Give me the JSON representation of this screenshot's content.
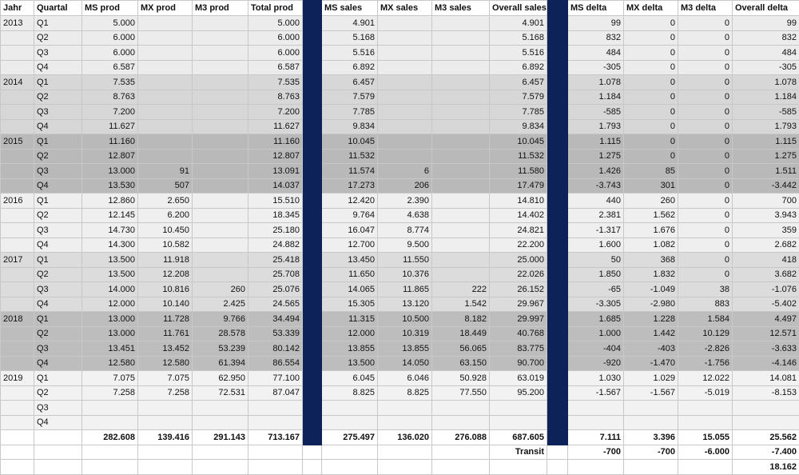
{
  "headers": [
    "Jahr",
    "Quartal",
    "MS prod",
    "MX prod",
    "M3 prod",
    "Total prod",
    "",
    "MS sales",
    "MX sales",
    "M3 sales",
    "Overall sales",
    "",
    "MS delta",
    "MX delta",
    "M3  delta",
    "Overall delta"
  ],
  "rows": [
    {
      "g": "g0",
      "year": "2013",
      "q": "Q1",
      "c": [
        "5.000",
        "",
        "",
        "5.000",
        "4.901",
        "",
        "",
        "4.901",
        "99",
        "0",
        "0",
        "99"
      ]
    },
    {
      "g": "g0",
      "year": "",
      "q": "Q2",
      "c": [
        "6.000",
        "",
        "",
        "6.000",
        "5.168",
        "",
        "",
        "5.168",
        "832",
        "0",
        "0",
        "832"
      ]
    },
    {
      "g": "g0",
      "year": "",
      "q": "Q3",
      "c": [
        "6.000",
        "",
        "",
        "6.000",
        "5.516",
        "",
        "",
        "5.516",
        "484",
        "0",
        "0",
        "484"
      ]
    },
    {
      "g": "g0",
      "year": "",
      "q": "Q4",
      "c": [
        "6.587",
        "",
        "",
        "6.587",
        "6.892",
        "",
        "",
        "6.892",
        "-305",
        "0",
        "0",
        "-305"
      ]
    },
    {
      "g": "g1",
      "year": "2014",
      "q": "Q1",
      "c": [
        "7.535",
        "",
        "",
        "7.535",
        "6.457",
        "",
        "",
        "6.457",
        "1.078",
        "0",
        "0",
        "1.078"
      ]
    },
    {
      "g": "g1",
      "year": "",
      "q": "Q2",
      "c": [
        "8.763",
        "",
        "",
        "8.763",
        "7.579",
        "",
        "",
        "7.579",
        "1.184",
        "0",
        "0",
        "1.184"
      ]
    },
    {
      "g": "g1",
      "year": "",
      "q": "Q3",
      "c": [
        "7.200",
        "",
        "",
        "7.200",
        "7.785",
        "",
        "",
        "7.785",
        "-585",
        "0",
        "0",
        "-585"
      ]
    },
    {
      "g": "g1",
      "year": "",
      "q": "Q4",
      "c": [
        "11.627",
        "",
        "",
        "11.627",
        "9.834",
        "",
        "",
        "9.834",
        "1.793",
        "0",
        "0",
        "1.793"
      ]
    },
    {
      "g": "g2",
      "year": "2015",
      "q": "Q1",
      "c": [
        "11.160",
        "",
        "",
        "11.160",
        "10.045",
        "",
        "",
        "10.045",
        "1.115",
        "0",
        "0",
        "1.115"
      ]
    },
    {
      "g": "g2",
      "year": "",
      "q": "Q2",
      "c": [
        "12.807",
        "",
        "",
        "12.807",
        "11.532",
        "",
        "",
        "11.532",
        "1.275",
        "0",
        "0",
        "1.275"
      ]
    },
    {
      "g": "g2",
      "year": "",
      "q": "Q3",
      "c": [
        "13.000",
        "91",
        "",
        "13.091",
        "11.574",
        "6",
        "",
        "11.580",
        "1.426",
        "85",
        "0",
        "1.511"
      ]
    },
    {
      "g": "g2",
      "year": "",
      "q": "Q4",
      "c": [
        "13.530",
        "507",
        "",
        "14.037",
        "17.273",
        "206",
        "",
        "17.479",
        "-3.743",
        "301",
        "0",
        "-3.442"
      ]
    },
    {
      "g": "g3",
      "year": "2016",
      "q": "Q1",
      "c": [
        "12.860",
        "2.650",
        "",
        "15.510",
        "12.420",
        "2.390",
        "",
        "14.810",
        "440",
        "260",
        "0",
        "700"
      ]
    },
    {
      "g": "g3",
      "year": "",
      "q": "Q2",
      "c": [
        "12.145",
        "6.200",
        "",
        "18.345",
        "9.764",
        "4.638",
        "",
        "14.402",
        "2.381",
        "1.562",
        "0",
        "3.943"
      ]
    },
    {
      "g": "g3",
      "year": "",
      "q": "Q3",
      "c": [
        "14.730",
        "10.450",
        "",
        "25.180",
        "16.047",
        "8.774",
        "",
        "24.821",
        "-1.317",
        "1.676",
        "0",
        "359"
      ]
    },
    {
      "g": "g3",
      "year": "",
      "q": "Q4",
      "c": [
        "14.300",
        "10.582",
        "",
        "24.882",
        "12.700",
        "9.500",
        "",
        "22.200",
        "1.600",
        "1.082",
        "0",
        "2.682"
      ]
    },
    {
      "g": "g4",
      "year": "2017",
      "q": "Q1",
      "c": [
        "13.500",
        "11.918",
        "",
        "25.418",
        "13.450",
        "11.550",
        "",
        "25.000",
        "50",
        "368",
        "0",
        "418"
      ]
    },
    {
      "g": "g4",
      "year": "",
      "q": "Q2",
      "c": [
        "13.500",
        "12.208",
        "",
        "25.708",
        "11.650",
        "10.376",
        "",
        "22.026",
        "1.850",
        "1.832",
        "0",
        "3.682"
      ]
    },
    {
      "g": "g4",
      "year": "",
      "q": "Q3",
      "c": [
        "14.000",
        "10.816",
        "260",
        "25.076",
        "14.065",
        "11.865",
        "222",
        "26.152",
        "-65",
        "-1.049",
        "38",
        "-1.076"
      ]
    },
    {
      "g": "g4",
      "year": "",
      "q": "Q4",
      "c": [
        "12.000",
        "10.140",
        "2.425",
        "24.565",
        "15.305",
        "13.120",
        "1.542",
        "29.967",
        "-3.305",
        "-2.980",
        "883",
        "-5.402"
      ]
    },
    {
      "g": "g5",
      "year": "2018",
      "q": "Q1",
      "c": [
        "13.000",
        "11.728",
        "9.766",
        "34.494",
        "11.315",
        "10.500",
        "8.182",
        "29.997",
        "1.685",
        "1.228",
        "1.584",
        "4.497"
      ]
    },
    {
      "g": "g5",
      "year": "",
      "q": "Q2",
      "c": [
        "13.000",
        "11.761",
        "28.578",
        "53.339",
        "12.000",
        "10.319",
        "18.449",
        "40.768",
        "1.000",
        "1.442",
        "10.129",
        "12.571"
      ]
    },
    {
      "g": "g5",
      "year": "",
      "q": "Q3",
      "c": [
        "13.451",
        "13.452",
        "53.239",
        "80.142",
        "13.855",
        "13.855",
        "56.065",
        "83.775",
        "-404",
        "-403",
        "-2.826",
        "-3.633"
      ]
    },
    {
      "g": "g5",
      "year": "",
      "q": "Q4",
      "c": [
        "12.580",
        "12.580",
        "61.394",
        "86.554",
        "13.500",
        "14.050",
        "63.150",
        "90.700",
        "-920",
        "-1.470",
        "-1.756",
        "-4.146"
      ]
    },
    {
      "g": "g6",
      "year": "2019",
      "q": "Q1",
      "c": [
        "7.075",
        "7.075",
        "62.950",
        "77.100",
        "6.045",
        "6.046",
        "50.928",
        "63.019",
        "1.030",
        "1.029",
        "12.022",
        "14.081"
      ]
    },
    {
      "g": "g6",
      "year": "",
      "q": "Q2",
      "c": [
        "7.258",
        "7.258",
        "72.531",
        "87.047",
        "8.825",
        "8.825",
        "77.550",
        "95.200",
        "-1.567",
        "-1.567",
        "-5.019",
        "-8.153"
      ]
    },
    {
      "g": "g6",
      "year": "",
      "q": "Q3",
      "c": [
        "",
        "",
        "",
        "",
        "",
        "",
        "",
        "",
        "",
        "",
        "",
        ""
      ]
    },
    {
      "g": "g6",
      "year": "",
      "q": "Q4",
      "c": [
        "",
        "",
        "",
        "",
        "",
        "",
        "",
        "",
        "",
        "",
        "",
        ""
      ]
    }
  ],
  "totals": {
    "c": [
      "282.608",
      "139.416",
      "291.143",
      "713.167",
      "275.497",
      "136.020",
      "276.088",
      "687.605",
      "7.111",
      "3.396",
      "15.055",
      "25.562"
    ]
  },
  "transit": {
    "label": "Transit",
    "c": [
      "-700",
      "-700",
      "-6.000",
      "-7.400"
    ]
  },
  "final": {
    "value": "18.162"
  },
  "colors": {
    "separator": "#0d2259"
  }
}
